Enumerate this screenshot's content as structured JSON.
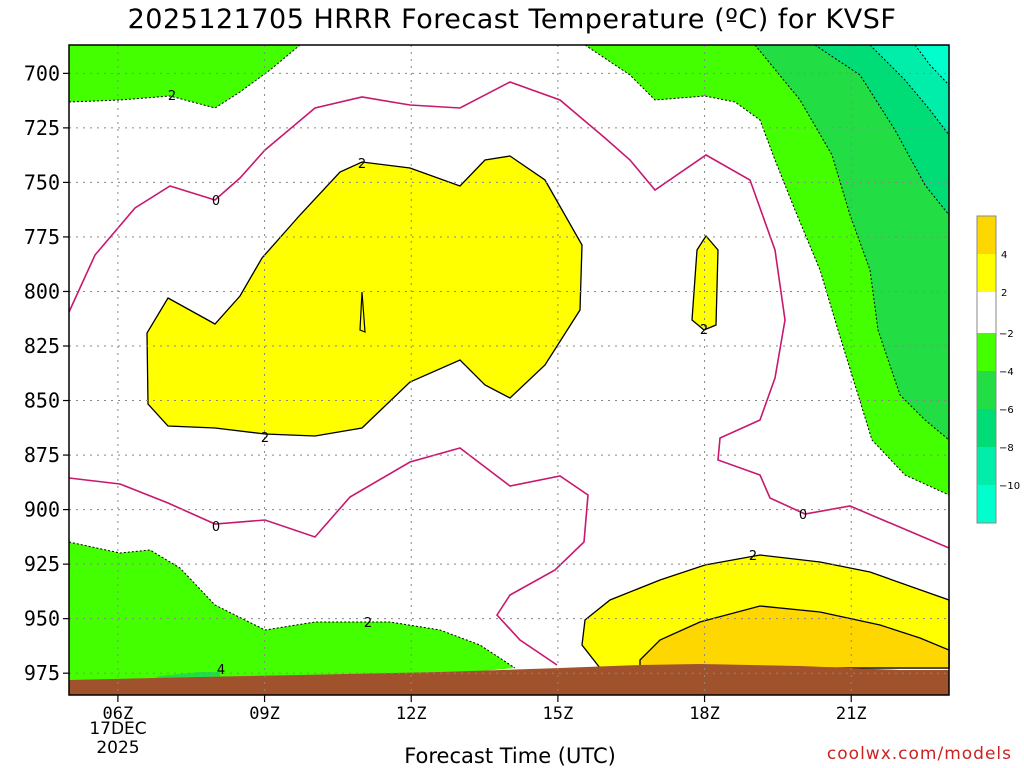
{
  "title": "2025121705 HRRR Forecast Temperature (ºC) for KVSF",
  "x_axis_title": "Forecast Time (UTC)",
  "date_note": [
    "17DEC",
    "2025"
  ],
  "watermark": "coolwx.com/models",
  "colors": {
    "warm_2_4": "#ffff00",
    "warm_4_6": "#ffd700",
    "cold_2_4": "#44ff00",
    "cold_4_6": "#22dd44",
    "cold_6_8": "#00dd77",
    "cold_8_10": "#00eeaa",
    "cold_10_12": "#00ffcc",
    "zero_isotherm": "#c8186e",
    "terrain": "#a0522d"
  },
  "chart_data": {
    "type": "contour",
    "variable": "Forecast Temperature (ºC)",
    "xlabel": "Forecast Time (UTC)",
    "ylabel": "",
    "x_ticks": [
      "06Z",
      "09Z",
      "12Z",
      "15Z",
      "18Z",
      "21Z"
    ],
    "x_range_hours_utc": [
      5,
      23
    ],
    "y_ticks": [
      "700",
      "725",
      "750",
      "775",
      "800",
      "825",
      "850",
      "875",
      "900",
      "925",
      "950",
      "975"
    ],
    "y_range_hpa": [
      687,
      985
    ],
    "y_direction": "pressure decreasing upward",
    "grid": true,
    "contour_levels": [
      -10,
      -8,
      -6,
      -4,
      -2,
      0,
      2,
      4
    ],
    "contour_labels_shown": [
      "2",
      "0",
      "2",
      "2",
      "0",
      "0",
      "2",
      "2",
      "4",
      "2"
    ],
    "legend": {
      "position": "right",
      "type": "colorbar",
      "labels": [
        "4",
        "2",
        "−2",
        "−4",
        "−6",
        "−8",
        "−10"
      ]
    }
  }
}
